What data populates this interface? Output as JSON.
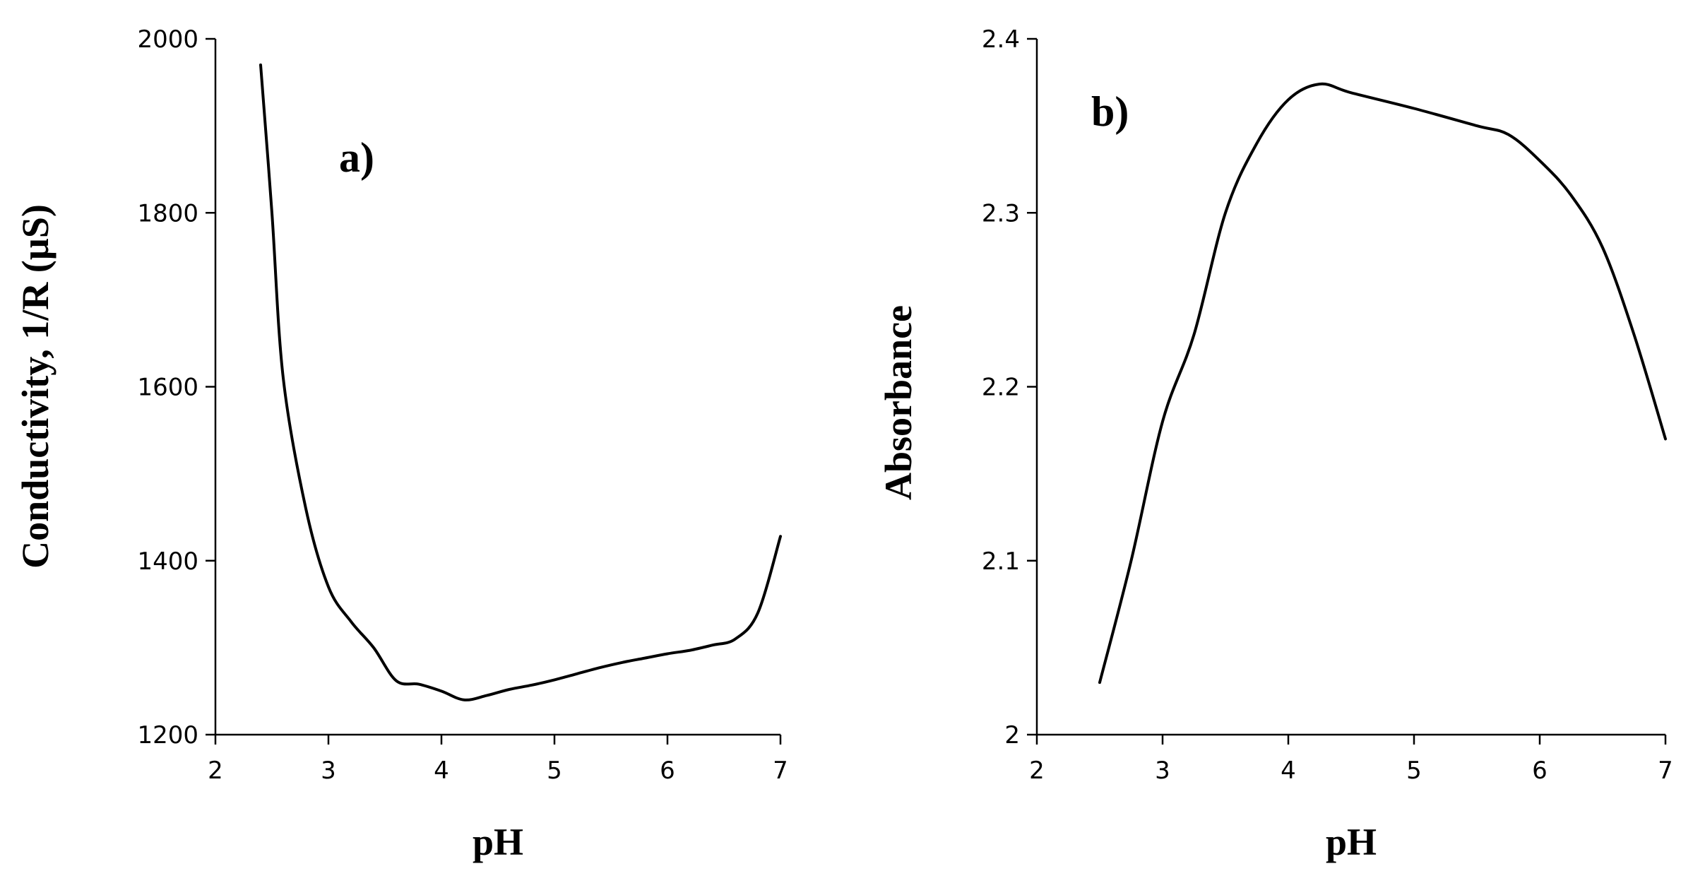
{
  "chart_data": [
    {
      "type": "line",
      "panel_label": "a)",
      "title": "",
      "xlabel": "pH",
      "ylabel": "Conductivity, 1/R (µS)",
      "xlim": [
        2,
        7
      ],
      "ylim": [
        1200,
        2000
      ],
      "xticks": [
        2,
        3,
        4,
        5,
        6,
        7
      ],
      "yticks": [
        1200,
        1400,
        1600,
        1800,
        2000
      ],
      "grid": false,
      "legend": "none",
      "series": [
        {
          "x": [
            2.4,
            2.5,
            2.6,
            2.8,
            3.0,
            3.2,
            3.4,
            3.6,
            3.8,
            4.0,
            4.2,
            4.4,
            4.6,
            4.8,
            5.0,
            5.2,
            5.4,
            5.6,
            5.8,
            6.0,
            6.2,
            6.4,
            6.6,
            6.8,
            7.0
          ],
          "y": [
            1970,
            1800,
            1610,
            1460,
            1370,
            1330,
            1300,
            1262,
            1258,
            1250,
            1240,
            1245,
            1252,
            1257,
            1263,
            1270,
            1277,
            1283,
            1288,
            1293,
            1297,
            1303,
            1310,
            1340,
            1428
          ]
        }
      ]
    },
    {
      "type": "line",
      "panel_label": "b)",
      "title": "",
      "xlabel": "pH",
      "ylabel": "Absorbance",
      "xlim": [
        2,
        7
      ],
      "ylim": [
        2,
        2.4
      ],
      "xticks": [
        2,
        3,
        4,
        5,
        6,
        7
      ],
      "yticks": [
        2,
        2.1,
        2.2,
        2.3,
        2.4
      ],
      "grid": false,
      "legend": "none",
      "series": [
        {
          "x": [
            2.5,
            2.75,
            3.0,
            3.25,
            3.5,
            3.75,
            4.0,
            4.25,
            4.5,
            5.0,
            5.5,
            5.75,
            6.0,
            6.25,
            6.5,
            6.75,
            7.0
          ],
          "y": [
            2.03,
            2.1,
            2.18,
            2.23,
            2.3,
            2.34,
            2.365,
            2.374,
            2.369,
            2.36,
            2.35,
            2.345,
            2.33,
            2.31,
            2.28,
            2.23,
            2.17
          ]
        }
      ]
    }
  ]
}
